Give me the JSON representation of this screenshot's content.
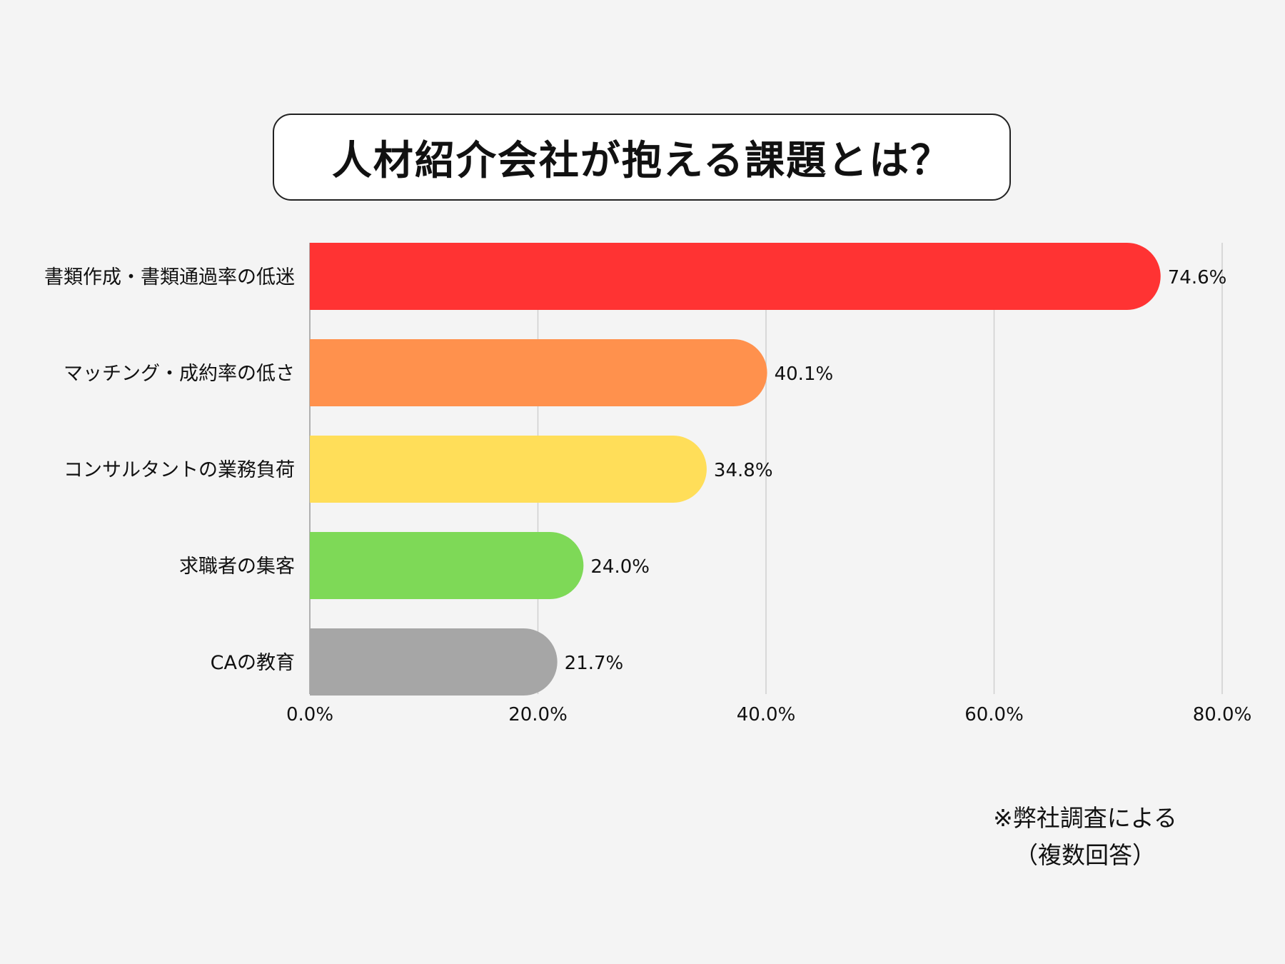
{
  "title": "人材紹介会社が抱える課題とは？",
  "footnote": {
    "line1": "※弊社調査による",
    "line2": "（複数回答）"
  },
  "chart_data": {
    "type": "bar",
    "orientation": "horizontal",
    "categories": [
      "書類作成・書類通過率の低迷",
      "マッチング・成約率の低さ",
      "コンサルタントの業務負荷",
      "求職者の集客",
      "CAの教育"
    ],
    "values": [
      74.6,
      40.1,
      34.8,
      24.0,
      21.7
    ],
    "data_labels": [
      "74.6%",
      "40.1%",
      "34.8%",
      "24.0%",
      "21.7%"
    ],
    "colors": [
      "#ff3333",
      "#ff914d",
      "#ffde59",
      "#7ed957",
      "#a6a6a6"
    ],
    "xlim": [
      0,
      80
    ],
    "x_ticks": [
      0,
      20,
      40,
      60,
      80
    ],
    "x_tick_labels": [
      "0.0%",
      "20.0%",
      "40.0%",
      "60.0%",
      "80.0%"
    ],
    "grid": true,
    "legend": "none"
  }
}
